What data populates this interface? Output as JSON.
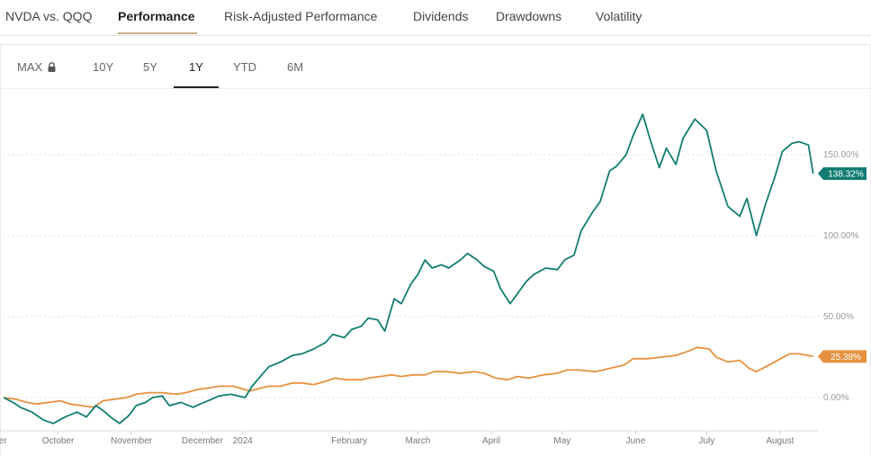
{
  "tabs": [
    {
      "label": "NVDA vs. QQQ",
      "active": false
    },
    {
      "label": "Performance",
      "active": true
    },
    {
      "label": "Risk-Adjusted Performance",
      "active": false
    },
    {
      "label": "Dividends",
      "active": false
    },
    {
      "label": "Drawdowns",
      "active": false
    },
    {
      "label": "Volatility",
      "active": false
    }
  ],
  "ranges": [
    {
      "label": "MAX",
      "locked": true
    },
    {
      "label": "10Y"
    },
    {
      "label": "5Y"
    },
    {
      "label": "1Y",
      "active": true
    },
    {
      "label": "YTD"
    },
    {
      "label": "6M"
    }
  ],
  "chart_data": {
    "type": "line",
    "title": "",
    "xlabel": "",
    "ylabel": "",
    "y_ticks": [
      "0.00%",
      "50.00%",
      "100.00%",
      "150.00%"
    ],
    "ylim": [
      -25,
      190
    ],
    "xlim": [
      "2023-09-22",
      "2024-08-31"
    ],
    "x_ticks": [
      {
        "date": "2023-09-18",
        "label": "ember"
      },
      {
        "date": "2023-10-15",
        "label": "October"
      },
      {
        "date": "2023-11-15",
        "label": "November"
      },
      {
        "date": "2023-12-15",
        "label": "December"
      },
      {
        "date": "2024-01-01",
        "label": "2024"
      },
      {
        "date": "2024-02-15",
        "label": "February"
      },
      {
        "date": "2024-03-15",
        "label": "March"
      },
      {
        "date": "2024-04-15",
        "label": "April"
      },
      {
        "date": "2024-05-15",
        "label": "May"
      },
      {
        "date": "2024-06-15",
        "label": "June"
      },
      {
        "date": "2024-07-15",
        "label": "July"
      },
      {
        "date": "2024-08-15",
        "label": "August"
      }
    ],
    "grid": true,
    "colors": {
      "NVDA": "#127d72",
      "QQQ": "#e6913f"
    },
    "series": [
      {
        "name": "NVDA",
        "color": "#127d72",
        "last_label": "138.32%",
        "points": [
          [
            "2023-09-22",
            0
          ],
          [
            "2023-09-26",
            -3
          ],
          [
            "2023-09-29",
            -6
          ],
          [
            "2023-10-04",
            -9
          ],
          [
            "2023-10-09",
            -14
          ],
          [
            "2023-10-13",
            -16
          ],
          [
            "2023-10-18",
            -12
          ],
          [
            "2023-10-23",
            -9
          ],
          [
            "2023-10-27",
            -12
          ],
          [
            "2023-10-31",
            -5
          ],
          [
            "2023-11-03",
            -8
          ],
          [
            "2023-11-07",
            -13
          ],
          [
            "2023-11-10",
            -16
          ],
          [
            "2023-11-14",
            -11
          ],
          [
            "2023-11-17",
            -5
          ],
          [
            "2023-11-21",
            -3
          ],
          [
            "2023-11-24",
            0
          ],
          [
            "2023-11-28",
            1
          ],
          [
            "2023-12-01",
            -5
          ],
          [
            "2023-12-06",
            -3
          ],
          [
            "2023-12-11",
            -6
          ],
          [
            "2023-12-14",
            -4
          ],
          [
            "2023-12-19",
            -1
          ],
          [
            "2023-12-22",
            1
          ],
          [
            "2023-12-27",
            2
          ],
          [
            "2024-01-02",
            0
          ],
          [
            "2024-01-05",
            7
          ],
          [
            "2024-01-09",
            14
          ],
          [
            "2024-01-12",
            19
          ],
          [
            "2024-01-17",
            22
          ],
          [
            "2024-01-22",
            26
          ],
          [
            "2024-01-26",
            27
          ],
          [
            "2024-01-31",
            30
          ],
          [
            "2024-02-05",
            34
          ],
          [
            "2024-02-08",
            39
          ],
          [
            "2024-02-13",
            37
          ],
          [
            "2024-02-16",
            42
          ],
          [
            "2024-02-20",
            44
          ],
          [
            "2024-02-23",
            49
          ],
          [
            "2024-02-27",
            48
          ],
          [
            "2024-03-01",
            41
          ],
          [
            "2024-03-05",
            61
          ],
          [
            "2024-03-08",
            58
          ],
          [
            "2024-03-12",
            70
          ],
          [
            "2024-03-15",
            76
          ],
          [
            "2024-03-18",
            85
          ],
          [
            "2024-03-21",
            80
          ],
          [
            "2024-03-25",
            82
          ],
          [
            "2024-03-28",
            80
          ],
          [
            "2024-04-02",
            85
          ],
          [
            "2024-04-05",
            89
          ],
          [
            "2024-04-09",
            85
          ],
          [
            "2024-04-12",
            81
          ],
          [
            "2024-04-16",
            78
          ],
          [
            "2024-04-19",
            67
          ],
          [
            "2024-04-23",
            58
          ],
          [
            "2024-04-26",
            64
          ],
          [
            "2024-04-30",
            72
          ],
          [
            "2024-05-03",
            76
          ],
          [
            "2024-05-08",
            80
          ],
          [
            "2024-05-13",
            79
          ],
          [
            "2024-05-16",
            85
          ],
          [
            "2024-05-20",
            88
          ],
          [
            "2024-05-23",
            103
          ],
          [
            "2024-05-28",
            115
          ],
          [
            "2024-05-31",
            121
          ],
          [
            "2024-06-04",
            140
          ],
          [
            "2024-06-07",
            143
          ],
          [
            "2024-06-11",
            150
          ],
          [
            "2024-06-14",
            162
          ],
          [
            "2024-06-18",
            175
          ],
          [
            "2024-06-21",
            160
          ],
          [
            "2024-06-25",
            142
          ],
          [
            "2024-06-28",
            154
          ],
          [
            "2024-07-02",
            144
          ],
          [
            "2024-07-05",
            160
          ],
          [
            "2024-07-10",
            172
          ],
          [
            "2024-07-15",
            165
          ],
          [
            "2024-07-19",
            140
          ],
          [
            "2024-07-24",
            118
          ],
          [
            "2024-07-29",
            112
          ],
          [
            "2024-08-01",
            123
          ],
          [
            "2024-08-05",
            100
          ],
          [
            "2024-08-09",
            120
          ],
          [
            "2024-08-13",
            137
          ],
          [
            "2024-08-16",
            152
          ],
          [
            "2024-08-20",
            157
          ],
          [
            "2024-08-23",
            158
          ],
          [
            "2024-08-27",
            156
          ],
          [
            "2024-08-29",
            138.32
          ]
        ]
      },
      {
        "name": "QQQ",
        "color": "#e6913f",
        "last_label": "25.38%",
        "points": [
          [
            "2023-09-22",
            0
          ],
          [
            "2023-09-27",
            -1
          ],
          [
            "2023-10-02",
            -3
          ],
          [
            "2023-10-06",
            -4
          ],
          [
            "2023-10-11",
            -3
          ],
          [
            "2023-10-16",
            -2
          ],
          [
            "2023-10-20",
            -4
          ],
          [
            "2023-10-25",
            -5
          ],
          [
            "2023-10-30",
            -6
          ],
          [
            "2023-11-03",
            -2
          ],
          [
            "2023-11-08",
            -1
          ],
          [
            "2023-11-13",
            0
          ],
          [
            "2023-11-17",
            2
          ],
          [
            "2023-11-22",
            3
          ],
          [
            "2023-11-28",
            3
          ],
          [
            "2023-12-04",
            2
          ],
          [
            "2023-12-08",
            3
          ],
          [
            "2023-12-13",
            5
          ],
          [
            "2023-12-18",
            6
          ],
          [
            "2023-12-22",
            7
          ],
          [
            "2023-12-28",
            7
          ],
          [
            "2024-01-04",
            4
          ],
          [
            "2024-01-09",
            6
          ],
          [
            "2024-01-12",
            7
          ],
          [
            "2024-01-17",
            7
          ],
          [
            "2024-01-22",
            9
          ],
          [
            "2024-01-26",
            9
          ],
          [
            "2024-01-31",
            8
          ],
          [
            "2024-02-05",
            10
          ],
          [
            "2024-02-09",
            12
          ],
          [
            "2024-02-14",
            11
          ],
          [
            "2024-02-20",
            11
          ],
          [
            "2024-02-23",
            12
          ],
          [
            "2024-02-28",
            13
          ],
          [
            "2024-03-04",
            14
          ],
          [
            "2024-03-08",
            13
          ],
          [
            "2024-03-13",
            14
          ],
          [
            "2024-03-18",
            14
          ],
          [
            "2024-03-22",
            16
          ],
          [
            "2024-03-27",
            16
          ],
          [
            "2024-04-02",
            15
          ],
          [
            "2024-04-08",
            16
          ],
          [
            "2024-04-12",
            15
          ],
          [
            "2024-04-17",
            12
          ],
          [
            "2024-04-22",
            11
          ],
          [
            "2024-04-26",
            13
          ],
          [
            "2024-05-01",
            12
          ],
          [
            "2024-05-07",
            14
          ],
          [
            "2024-05-13",
            15
          ],
          [
            "2024-05-17",
            17
          ],
          [
            "2024-05-22",
            17
          ],
          [
            "2024-05-29",
            16
          ],
          [
            "2024-06-04",
            18
          ],
          [
            "2024-06-10",
            20
          ],
          [
            "2024-06-14",
            24
          ],
          [
            "2024-06-20",
            24
          ],
          [
            "2024-06-26",
            25
          ],
          [
            "2024-07-02",
            26
          ],
          [
            "2024-07-08",
            29
          ],
          [
            "2024-07-11",
            31
          ],
          [
            "2024-07-16",
            30
          ],
          [
            "2024-07-19",
            25
          ],
          [
            "2024-07-24",
            22
          ],
          [
            "2024-07-29",
            23
          ],
          [
            "2024-08-02",
            18
          ],
          [
            "2024-08-05",
            16
          ],
          [
            "2024-08-09",
            19
          ],
          [
            "2024-08-14",
            23
          ],
          [
            "2024-08-19",
            27
          ],
          [
            "2024-08-23",
            27
          ],
          [
            "2024-08-27",
            26
          ],
          [
            "2024-08-29",
            25.38
          ]
        ]
      }
    ]
  }
}
